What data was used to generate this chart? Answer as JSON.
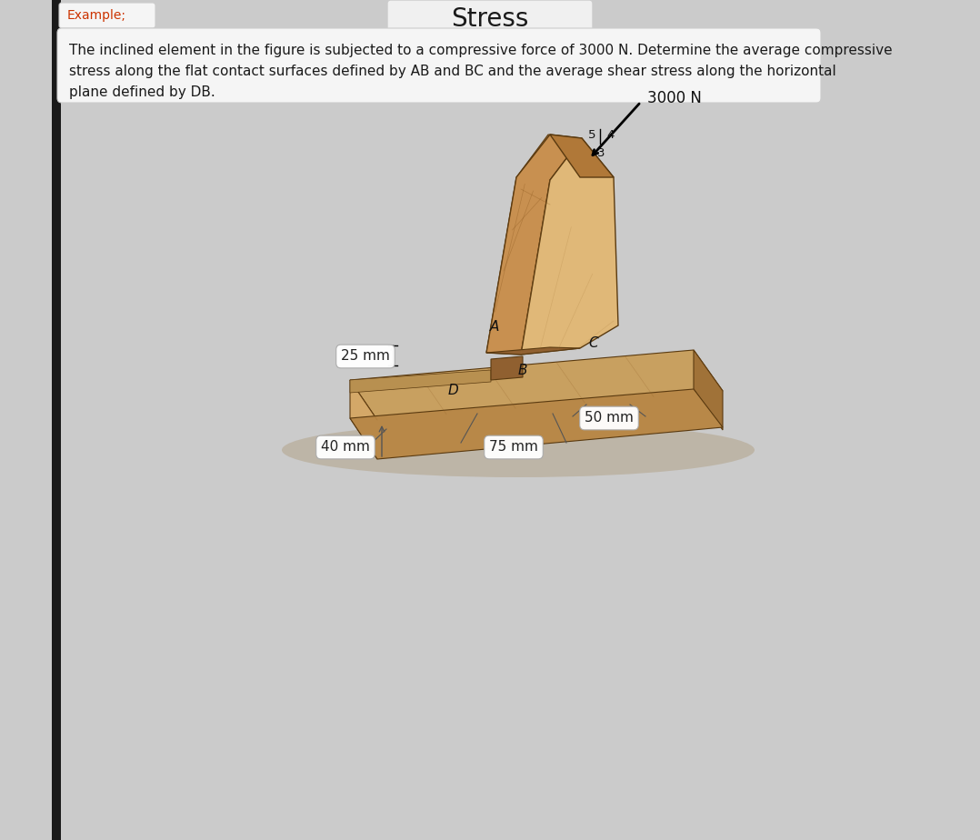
{
  "title": "Stress",
  "title_fontsize": 20,
  "background_color": "#cbcbcb",
  "example_label": "Example;",
  "example_color": "#cc3300",
  "example_fontsize": 10,
  "description_text": "The inclined element in the figure is subjected to a compressive force of 3000 N. Determine the average compressive\nstress along the flat contact surfaces defined by AB and BC and the average shear stress along the horizontal\nplane defined by DB.",
  "description_fontsize": 11,
  "dim_25mm": "25 mm",
  "dim_40mm": "40 mm",
  "dim_75mm": "75 mm",
  "dim_50mm": "50 mm",
  "force_text": "3000 N",
  "label_A": "A",
  "label_B": "B",
  "label_C": "C",
  "label_D": "D",
  "wood_light": "#c8945a",
  "wood_mid": "#b07838",
  "wood_dark": "#8a5c28",
  "wood_top": "#d4a868",
  "wood_shadow": "#c0a888",
  "left_bar_color": "#1a1a1a",
  "title_bg": "#f0f0f0",
  "box_bg": "#f5f5f5"
}
